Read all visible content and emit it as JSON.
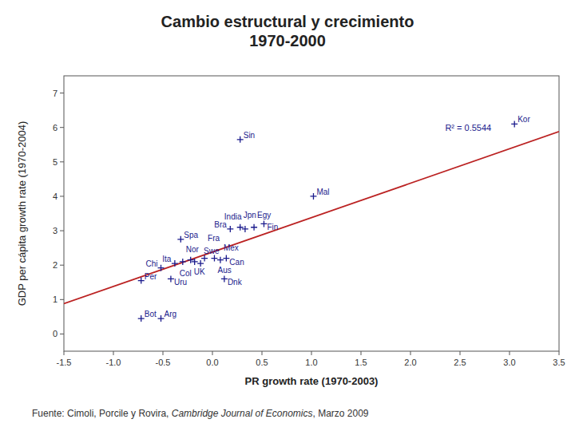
{
  "chart_data": {
    "type": "scatter",
    "title": "Cambio estructural y crecimiento\n1970-2000",
    "xlabel": "PR growth rate (1970-2003)",
    "ylabel": "GDP per cápita growth rate (1970-2004)",
    "footnote": [
      "Fuente: Cimoli, Porcile y Rovira, ",
      "Cambridge Journal of Economics",
      ", Marzo 2009"
    ],
    "annotations": [
      {
        "text": "R² = 0.5544",
        "x": 2.35,
        "y": 5.9
      }
    ],
    "series": [
      {
        "type": "scatter",
        "color": "#1a1a8c",
        "marker": "plus",
        "x": [
          -0.72,
          -0.52,
          -0.72,
          -0.52,
          -0.38,
          -0.3,
          -0.32,
          -0.22,
          -0.18,
          -0.12,
          -0.08,
          0.02,
          0.08,
          0.14,
          0.12,
          -0.42,
          0.18,
          0.28,
          0.33,
          0.42,
          0.52,
          0.28,
          1.02,
          3.05
        ],
        "values": [
          0.45,
          0.45,
          1.55,
          1.92,
          2.05,
          2.1,
          2.75,
          2.15,
          2.1,
          2.05,
          2.2,
          2.2,
          2.15,
          2.2,
          1.6,
          1.6,
          3.05,
          3.1,
          3.05,
          3.1,
          3.2,
          5.65,
          4.0,
          6.1
        ],
        "point_labels": [
          "Bot",
          "Arg",
          "Per",
          "Chi",
          "Ita",
          "Nor",
          "Spa",
          "UK",
          "Col",
          "Swe",
          "Fra",
          "Aus",
          "Mex",
          "Can",
          "Dnk",
          "Uru",
          "Bra",
          "Jpn",
          "India",
          "Egy",
          "Fin",
          "Sin",
          "Mal",
          "Kor"
        ]
      },
      {
        "type": "line",
        "color": "#bb2222",
        "line_style": "solid",
        "x": [
          -1.5,
          3.5
        ],
        "values": [
          0.88,
          5.88
        ]
      }
    ],
    "xlim": [
      -1.5,
      3.5
    ],
    "ylim": [
      -0.5,
      7.5
    ],
    "xticks": [
      -1.5,
      {
        "value": -1,
        "label": "-1.0"
      },
      -0.5,
      {
        "value": 0,
        "label": "0.0"
      },
      0.5,
      {
        "value": 1,
        "label": "1.0"
      },
      1.5,
      {
        "value": 2,
        "label": "2.0"
      },
      2.5,
      {
        "value": 3,
        "label": "3.0"
      },
      3.5
    ],
    "yticks": [
      0,
      1,
      2,
      3,
      4,
      5,
      6,
      7
    ],
    "grid": false
  }
}
